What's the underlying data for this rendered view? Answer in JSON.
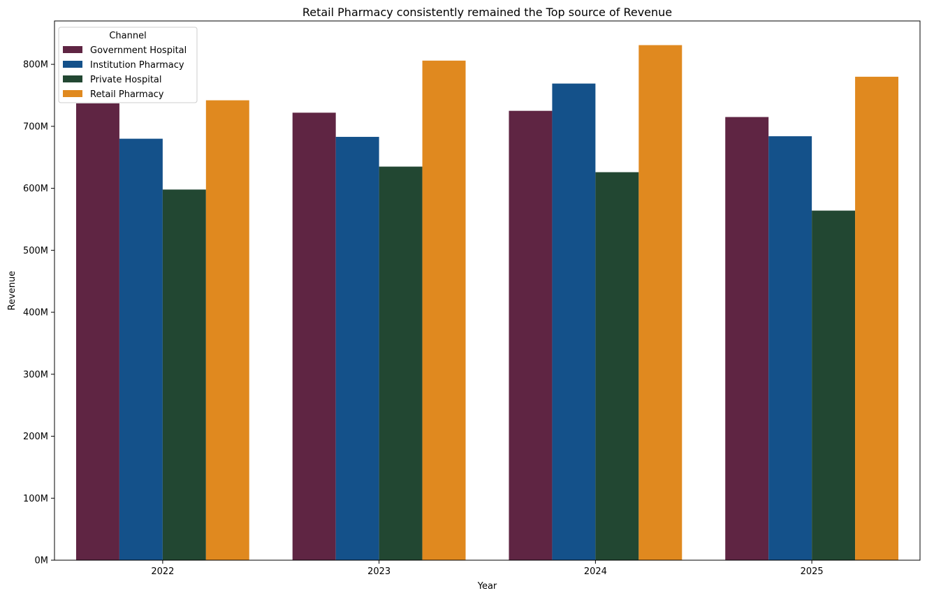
{
  "chart_data": {
    "type": "bar",
    "title": "Retail Pharmacy consistently remained the Top source of Revenue",
    "xlabel": "Year",
    "ylabel": "Revenue",
    "categories": [
      "2022",
      "2023",
      "2024",
      "2025"
    ],
    "ylim": [
      0,
      870000000
    ],
    "yticks": [
      0,
      100000000,
      200000000,
      300000000,
      400000000,
      500000000,
      600000000,
      700000000,
      800000000
    ],
    "ytick_labels": [
      "0M",
      "100M",
      "200M",
      "300M",
      "400M",
      "500M",
      "600M",
      "700M",
      "800M"
    ],
    "grid": false,
    "legend": {
      "title": "Channel",
      "placement": "top-left"
    },
    "series": [
      {
        "name": "Government Hospital",
        "color": "#5f2543",
        "values": [
          737000000,
          722000000,
          725000000,
          715000000
        ]
      },
      {
        "name": "Institution Pharmacy",
        "color": "#14518a",
        "values": [
          680000000,
          683000000,
          769000000,
          684000000
        ]
      },
      {
        "name": "Private Hospital",
        "color": "#224732",
        "values": [
          598000000,
          635000000,
          626000000,
          564000000
        ]
      },
      {
        "name": "Retail Pharmacy",
        "color": "#e0891f",
        "values": [
          742000000,
          806000000,
          831000000,
          780000000
        ]
      }
    ]
  }
}
